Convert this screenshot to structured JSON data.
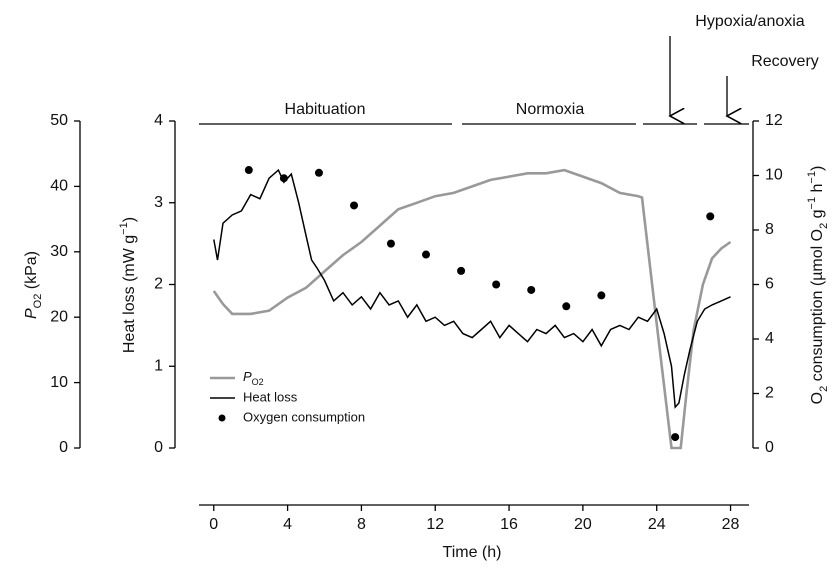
{
  "chart_data": {
    "type": "line",
    "xlabel": "Time (h)",
    "ylabel": "Heat loss (mW g−1)",
    "ylabel_parts": [
      "Heat loss (mW g",
      "−1",
      ")"
    ],
    "y2label_parts": [
      "O",
      "2",
      " consumption (µmol O",
      "2",
      " g",
      "−1",
      " h",
      "−1",
      ")"
    ],
    "y3label_parts": [
      "P",
      "O2",
      " (kPa)"
    ],
    "annotations": [
      "Habituation",
      "Normoxia",
      "Hypoxia/anoxia",
      "Recovery"
    ],
    "xlim": [
      -0.8,
      29
    ],
    "xticks": [
      0,
      4,
      8,
      12,
      16,
      20,
      24,
      28
    ],
    "ylim": [
      0,
      4
    ],
    "yticks": [
      0,
      1,
      2,
      3,
      4
    ],
    "y2lim": [
      0,
      12
    ],
    "y2ticks": [
      0,
      2,
      4,
      6,
      8,
      10,
      12
    ],
    "y3lim": [
      0,
      50
    ],
    "y3ticks": [
      0,
      10,
      20,
      30,
      40,
      50
    ],
    "series": [
      {
        "name": "PO2",
        "color": "#999999",
        "axis": "y3",
        "kind": "line",
        "x": [
          0,
          0.5,
          1,
          2,
          3,
          4,
          5,
          6,
          7,
          8,
          9,
          10,
          11,
          12,
          13,
          14,
          15,
          16,
          17,
          18,
          19,
          20,
          21,
          22,
          23,
          23.2,
          24,
          24.8,
          25.3,
          25.6,
          26,
          26.5,
          27,
          27.5,
          28
        ],
        "values": [
          24,
          22,
          20.5,
          20.5,
          21,
          23,
          24.5,
          27,
          29.5,
          31.5,
          34,
          36.5,
          37.5,
          38.5,
          39,
          40,
          41,
          41.5,
          42,
          42,
          42.5,
          41.5,
          40.5,
          39,
          38.5,
          38.3,
          19,
          0,
          0,
          8,
          18,
          25,
          29,
          30.5,
          31.5
        ]
      },
      {
        "name": "Heat loss",
        "color": "#000000",
        "axis": "y",
        "kind": "line",
        "x": [
          0,
          0.2,
          0.5,
          1,
          1.5,
          2,
          2.5,
          3,
          3.5,
          3.8,
          4.2,
          4.6,
          5,
          5.3,
          5.6,
          6,
          6.5,
          7,
          7.5,
          8,
          8.5,
          9,
          9.5,
          10,
          10.5,
          11,
          11.5,
          12,
          12.5,
          13,
          13.5,
          14,
          14.5,
          15,
          15.5,
          16,
          16.5,
          17,
          17.5,
          18,
          18.5,
          19,
          19.5,
          20,
          20.5,
          21,
          21.5,
          22,
          22.5,
          23,
          23.5,
          24,
          24.4,
          24.8,
          25,
          25.2,
          25.5,
          25.8,
          26.2,
          26.6,
          27,
          27.5,
          28
        ],
        "values": [
          2.55,
          2.3,
          2.75,
          2.85,
          2.9,
          3.1,
          3.05,
          3.3,
          3.4,
          3.25,
          3.35,
          3.0,
          2.6,
          2.3,
          2.2,
          2.05,
          1.8,
          1.9,
          1.75,
          1.85,
          1.7,
          1.9,
          1.75,
          1.8,
          1.6,
          1.75,
          1.55,
          1.6,
          1.5,
          1.55,
          1.4,
          1.35,
          1.45,
          1.55,
          1.35,
          1.5,
          1.4,
          1.3,
          1.45,
          1.4,
          1.5,
          1.35,
          1.4,
          1.3,
          1.45,
          1.25,
          1.45,
          1.5,
          1.45,
          1.6,
          1.55,
          1.7,
          1.4,
          1.0,
          0.5,
          0.55,
          0.9,
          1.2,
          1.55,
          1.7,
          1.75,
          1.8,
          1.85
        ]
      },
      {
        "name": "Oxygen consumption",
        "color": "#000000",
        "axis": "y2",
        "kind": "scatter",
        "x": [
          1.9,
          3.8,
          5.7,
          7.6,
          9.6,
          11.5,
          13.4,
          15.3,
          17.2,
          19.1,
          21,
          25,
          26.9
        ],
        "values": [
          10.2,
          9.9,
          10.1,
          8.9,
          7.5,
          7.1,
          6.5,
          6.0,
          5.8,
          5.2,
          5.6,
          0.4,
          8.5
        ]
      }
    ]
  }
}
